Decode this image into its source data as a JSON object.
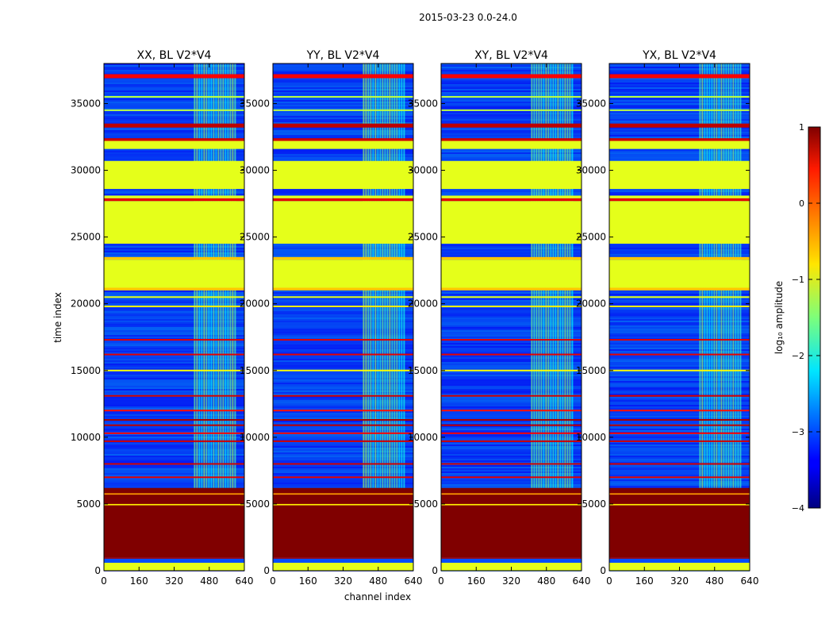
{
  "chart_data": {
    "type": "heatmap",
    "suptitle": "2015-03-23 0.0-24.0",
    "xlabel": "channel index",
    "ylabel": "time index",
    "xlim": [
      0,
      640
    ],
    "ylim": [
      0,
      38000
    ],
    "xticks": [
      0,
      160,
      320,
      480,
      640
    ],
    "yticks": [
      0,
      5000,
      10000,
      15000,
      20000,
      25000,
      30000,
      35000
    ],
    "rfi_channel_band": [
      410,
      600
    ],
    "panels": [
      {
        "title": "XX, BL V2*V4",
        "variant": "xx"
      },
      {
        "title": "YY, BL V2*V4",
        "variant": "yy"
      },
      {
        "title": "XY, BL V2*V4",
        "variant": "xy"
      },
      {
        "title": "YX, BL V2*V4",
        "variant": "yx"
      }
    ],
    "row_bands": [
      {
        "from": 0,
        "to": 600,
        "log_amp": -1
      },
      {
        "from": 600,
        "to": 900,
        "log_amp": -3
      },
      {
        "from": 900,
        "to": 1000,
        "log_amp": 0.8
      },
      {
        "from": 1000,
        "to": 6200,
        "log_amp": 1
      },
      {
        "from": 4900,
        "to": 5000,
        "log_amp": -0.8
      },
      {
        "from": 5700,
        "to": 5800,
        "log_amp": -0.4
      },
      {
        "from": 21000,
        "to": 21200,
        "log_amp": -0.6
      },
      {
        "from": 21200,
        "to": 23300,
        "log_amp": -1
      },
      {
        "from": 23300,
        "to": 23500,
        "log_amp": -0.6
      },
      {
        "from": 24500,
        "to": 27700,
        "log_amp": -1
      },
      {
        "from": 27700,
        "to": 27900,
        "log_amp": 0.5
      },
      {
        "from": 27900,
        "to": 28100,
        "log_amp": -1
      },
      {
        "from": 28600,
        "to": 30700,
        "log_amp": -1
      },
      {
        "from": 31600,
        "to": 32200,
        "log_amp": -1
      },
      {
        "from": 32200,
        "to": 32400,
        "log_amp": 0.6
      },
      {
        "from": 33200,
        "to": 33500,
        "log_amp": 0.7
      },
      {
        "from": 36900,
        "to": 37200,
        "log_amp": 0.4
      }
    ],
    "line_features": [
      {
        "at": 7000,
        "log_amp": 0.5
      },
      {
        "at": 8000,
        "log_amp": 0.6
      },
      {
        "at": 9700,
        "log_amp": 0.6
      },
      {
        "at": 10300,
        "log_amp": 0.4
      },
      {
        "at": 10900,
        "log_amp": 0.7
      },
      {
        "at": 11300,
        "log_amp": 0.8
      },
      {
        "at": 12000,
        "log_amp": 0.3
      },
      {
        "at": 13100,
        "log_amp": 0.6
      },
      {
        "at": 15000,
        "log_amp": -0.9
      },
      {
        "at": 16200,
        "log_amp": 0.5
      },
      {
        "at": 17300,
        "log_amp": 0.5
      },
      {
        "at": 19800,
        "log_amp": -0.8
      },
      {
        "at": 20500,
        "log_amp": -1
      },
      {
        "at": 34500,
        "log_amp": -1.2
      },
      {
        "at": 35500,
        "log_amp": -1.2
      }
    ],
    "colorbar": {
      "label": "log₁₀ amplitude",
      "range": [
        -4,
        1
      ],
      "ticks": [
        1,
        0,
        -1,
        -2,
        -3,
        -4
      ],
      "tick_labels": [
        "1",
        "0",
        "−1",
        "−2",
        "−3",
        "−4"
      ],
      "colormap": "jet"
    }
  }
}
